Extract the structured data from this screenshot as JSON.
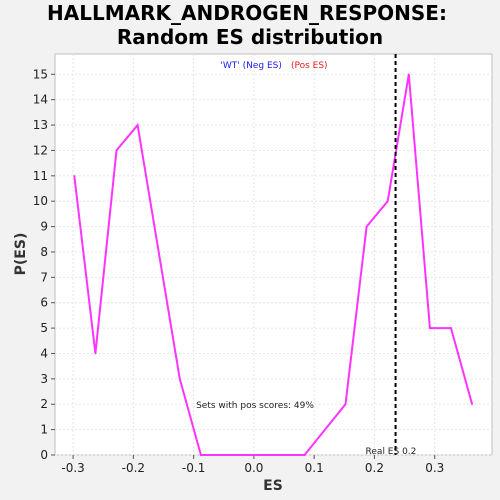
{
  "chart_data": {
    "type": "line",
    "title_line1": "HALLMARK_ANDROGEN_RESPONSE:",
    "title_line2": "Random ES distribution",
    "xlabel": "ES",
    "ylabel": "P(ES)",
    "xlim": [
      -0.33,
      0.395
    ],
    "ylim": [
      0,
      15.8
    ],
    "x_ticks": [
      -0.3,
      -0.2,
      -0.1,
      0.0,
      0.1,
      0.2,
      0.3
    ],
    "x_tick_labels": [
      "-0.3",
      "-0.2",
      "-0.1",
      "0.0",
      "0.1",
      "0.2",
      "0.3"
    ],
    "y_ticks": [
      0,
      1,
      2,
      3,
      4,
      5,
      6,
      7,
      8,
      9,
      10,
      11,
      12,
      13,
      14,
      15
    ],
    "y_tick_labels": [
      "0",
      "1",
      "2",
      "3",
      "4",
      "5",
      "6",
      "7",
      "8",
      "9",
      "10",
      "11",
      "12",
      "13",
      "14",
      "15"
    ],
    "grid": true,
    "legend": {
      "placement": "top-center",
      "entries": [
        {
          "text": "'WT' (Neg ES)",
          "color": "#1a1aff"
        },
        {
          "text": "(Pos ES)",
          "color": "#e61a1a"
        }
      ]
    },
    "series": [
      {
        "color": "#ff33ff",
        "x": [
          -0.298,
          -0.263,
          -0.228,
          -0.193,
          -0.123,
          -0.088,
          0.084,
          0.152,
          0.187,
          0.222,
          0.257,
          0.292,
          0.327,
          0.362
        ],
        "y": [
          11,
          4,
          12,
          13,
          3,
          0,
          0,
          2,
          9,
          10,
          15,
          5,
          5,
          2
        ]
      }
    ],
    "vline": {
      "x": 0.235,
      "label": "Real ES 0.2",
      "color": "#000000"
    },
    "annotation": "Sets with pos scores: 49%"
  }
}
